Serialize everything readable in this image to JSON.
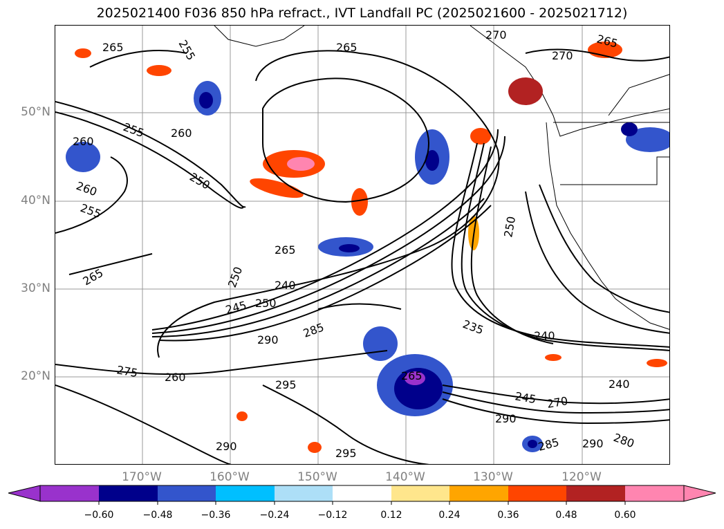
{
  "title": "2025021400 F036 850 hPa refract., IVT Landfall PC (2025021600 - 2025021712)",
  "lat_labels": [
    "50°N",
    "40°N",
    "30°N",
    "20°N"
  ],
  "lon_labels": [
    "170°W",
    "160°W",
    "150°W",
    "140°W",
    "130°W",
    "120°W"
  ],
  "colorbar": {
    "levels": [
      -0.6,
      -0.48,
      -0.36,
      -0.24,
      -0.12,
      0.12,
      0.24,
      0.36,
      0.48,
      0.6
    ],
    "tick_labels": [
      "−0.60",
      "−0.48",
      "−0.36",
      "−0.24",
      "−0.12",
      "0.12",
      "0.24",
      "0.36",
      "0.48",
      "0.60"
    ],
    "colors": [
      "#9932CC",
      "#00008B",
      "#3355CC",
      "#00BFFF",
      "#ADDFF7",
      "#FFFFFF",
      "#FFE68C",
      "#FFA500",
      "#FF4500",
      "#B22222",
      "#FF85B0"
    ],
    "extend": "both"
  },
  "contour_labels": [
    "265",
    "255",
    "265",
    "270",
    "265",
    "270",
    "260",
    "255",
    "260",
    "250",
    "260",
    "255",
    "265",
    "265",
    "250",
    "240",
    "250",
    "245",
    "290",
    "285",
    "275",
    "260",
    "295",
    "265",
    "235",
    "240",
    "240",
    "245",
    "270",
    "290",
    "285",
    "290",
    "280",
    "295",
    "290",
    "250"
  ]
}
